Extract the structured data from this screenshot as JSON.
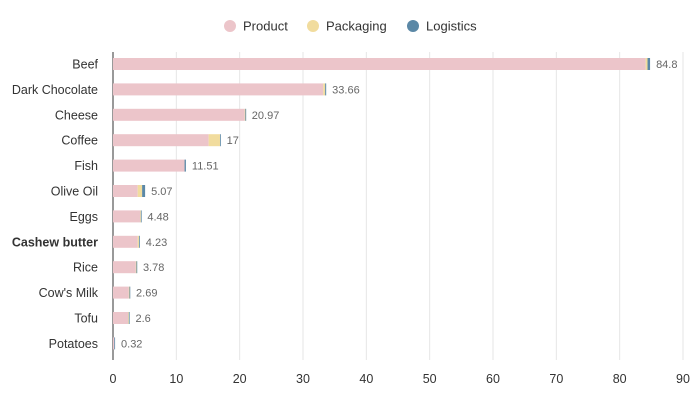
{
  "chart_data": {
    "type": "bar",
    "orientation": "horizontal",
    "stacked": true,
    "categories": [
      "Beef",
      "Dark Chocolate",
      "Cheese",
      "Coffee",
      "Fish",
      "Olive Oil",
      "Eggs",
      "Cashew butter",
      "Rice",
      "Cow's Milk",
      "Tofu",
      "Potatoes"
    ],
    "highlighted_category": "Cashew butter",
    "series": [
      {
        "name": "Product",
        "color": "#ecc5ca",
        "values": [
          84.1,
          33.2,
          20.8,
          15.1,
          11.3,
          3.9,
          4.3,
          3.9,
          3.6,
          2.5,
          2.4,
          0.2
        ]
      },
      {
        "name": "Packaging",
        "color": "#f1dc9e",
        "values": [
          0.3,
          0.3,
          0.1,
          1.8,
          0.0,
          0.7,
          0.1,
          0.2,
          0.1,
          0.1,
          0.1,
          0.0
        ]
      },
      {
        "name": "Logistics",
        "color": "#5b88a6",
        "values": [
          0.4,
          0.16,
          0.07,
          0.1,
          0.21,
          0.47,
          0.08,
          0.13,
          0.08,
          0.09,
          0.1,
          0.12
        ]
      }
    ],
    "totals": [
      "84.8",
      "33.66",
      "20.97",
      "17",
      "11.51",
      "5.07",
      "4.48",
      "4.23",
      "3.78",
      "2.69",
      "2.6",
      "0.32"
    ],
    "xlim": [
      0,
      90
    ],
    "xticks": [
      "0",
      "10",
      "20",
      "30",
      "40",
      "50",
      "60",
      "70",
      "80",
      "90"
    ],
    "grid": true,
    "legend_position": "top-center",
    "title": "",
    "xlabel": "",
    "ylabel": ""
  }
}
